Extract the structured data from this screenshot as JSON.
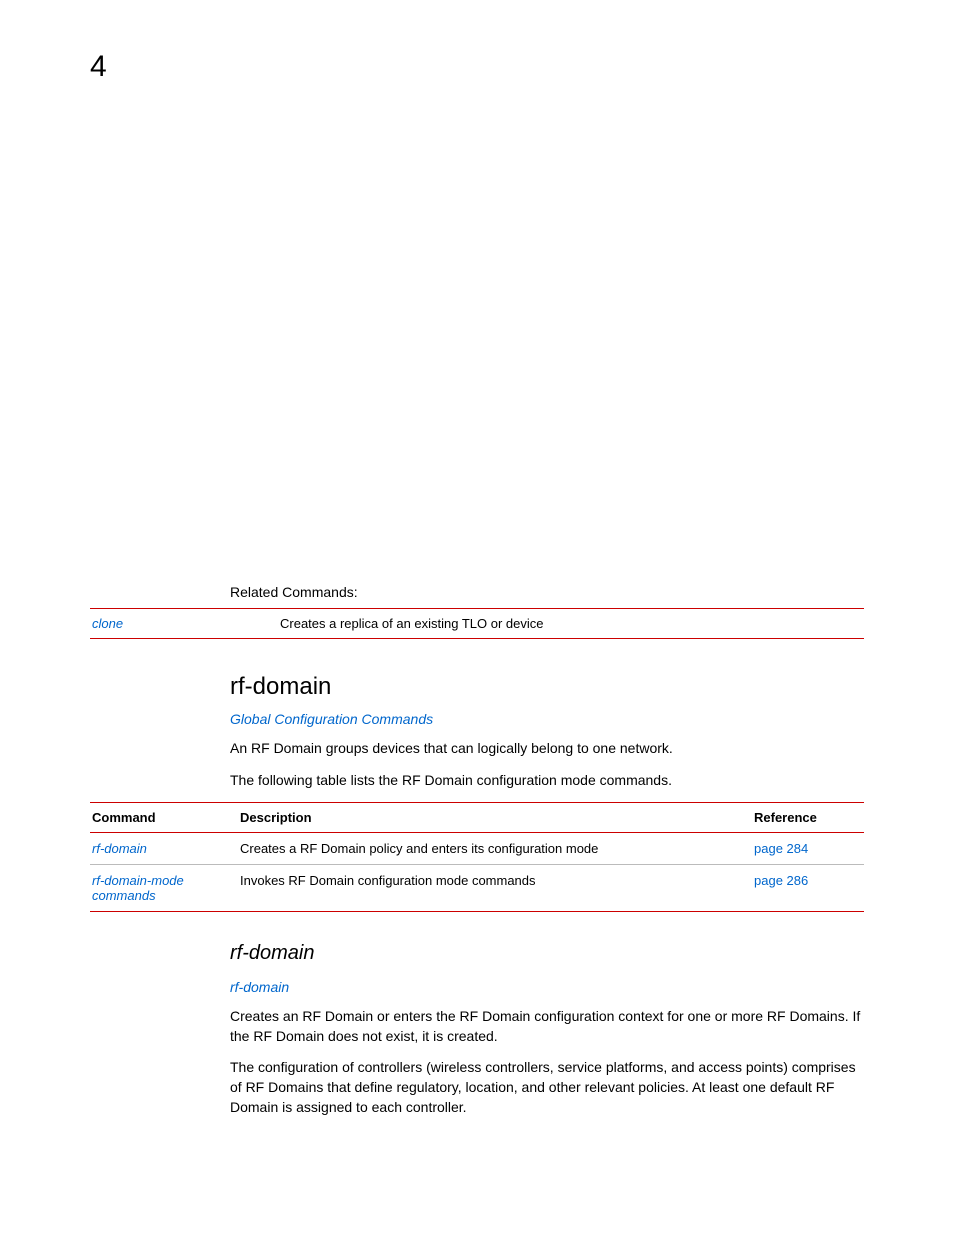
{
  "page_number": "4",
  "related": {
    "label": "Related Commands:",
    "rows": [
      {
        "cmd": "clone",
        "desc": "Creates a replica of an existing TLO or device"
      }
    ]
  },
  "section": {
    "title": "rf-domain",
    "parent_link": "Global Configuration Commands",
    "para1": "An RF Domain groups devices that can logically belong to one network.",
    "para2": "The following table lists the RF Domain configuration mode commands."
  },
  "cmd_table": {
    "headers": {
      "cmd": "Command",
      "desc": "Description",
      "ref": "Reference"
    },
    "rows": [
      {
        "cmd": "rf-domain",
        "desc": "Creates a RF Domain policy and enters its configuration mode",
        "ref": "page 284"
      },
      {
        "cmd": "rf-domain-mode commands",
        "desc": "Invokes RF Domain configuration mode commands",
        "ref": "page 286"
      }
    ]
  },
  "subsection": {
    "title": "rf-domain",
    "link": "rf-domain",
    "para1": "Creates an RF Domain or enters the RF Domain configuration context for one or more RF Domains. If the RF Domain does not exist, it is created.",
    "para2": "The configuration of controllers (wireless controllers, service platforms, and access points) comprises of RF Domains that define regulatory, location, and other relevant policies. At least one default RF Domain is assigned to each controller."
  },
  "colors": {
    "rule": "#cc0000",
    "link": "#0066cc",
    "text": "#000000",
    "row_border": "#bbbbbb",
    "background": "#ffffff"
  }
}
